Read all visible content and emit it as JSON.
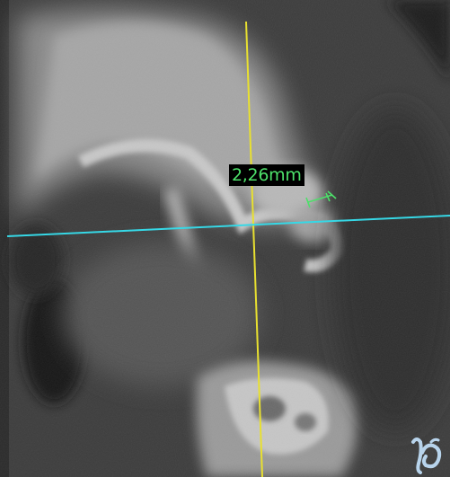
{
  "viewer": {
    "view_type": "CT cross-section",
    "measurement": {
      "value": "2,26mm",
      "color": "#4de06a"
    },
    "crosshair": {
      "vertical_color": "#e8e030",
      "horizontal_color": "#36d8e6"
    },
    "logo": {
      "icon": "romexis-style-logo-icon",
      "color": "#b8d4ec"
    }
  }
}
